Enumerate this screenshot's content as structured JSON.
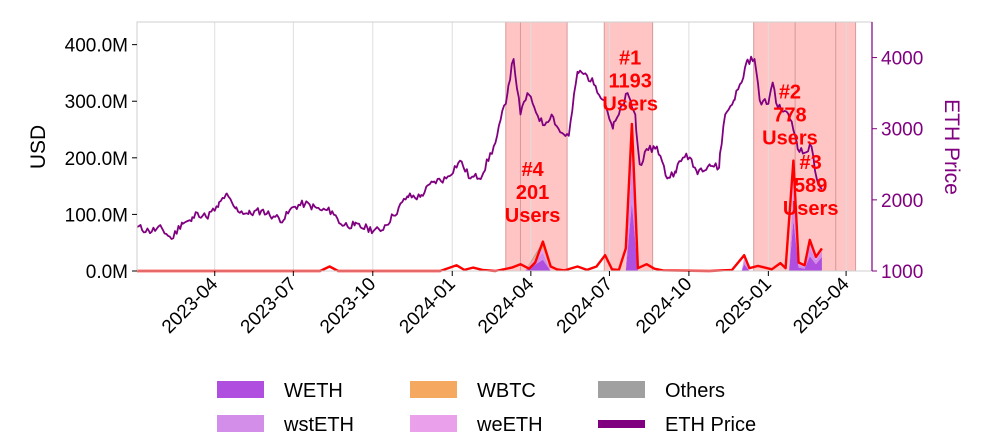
{
  "chart_data": {
    "type": "area",
    "x_axis": {
      "type": "date",
      "range": [
        "2023-01-01",
        "2025-05-01"
      ],
      "tick_labels": [
        "2023-04",
        "2023-07",
        "2023-10",
        "2024-01",
        "2024-04",
        "2024-07",
        "2024-10",
        "2025-01",
        "2025-04"
      ],
      "grid": true
    },
    "y_left": {
      "label": "USD",
      "range": [
        0,
        440000000
      ],
      "tick_values": [
        0,
        100000000,
        200000000,
        300000000,
        400000000
      ],
      "tick_labels": [
        "0.0M",
        "100.0M",
        "200.0M",
        "300.0M",
        "400.0M"
      ]
    },
    "y_right": {
      "label": "ETH Price",
      "range": [
        1000,
        4500
      ],
      "tick_values": [
        1000,
        2000,
        3000,
        4000
      ],
      "tick_labels": [
        "1000",
        "2000",
        "3000",
        "4000"
      ],
      "color": "#800080"
    },
    "legend_placement": "bottom",
    "legend": [
      {
        "label": "WETH",
        "color": "#b04ee0"
      },
      {
        "label": "WBTC",
        "color": "#f4a860"
      },
      {
        "label": "Others",
        "color": "#a0a0a0"
      },
      {
        "label": "wstETH",
        "color": "#d28ee8"
      },
      {
        "label": "weETH",
        "color": "#eaa0ea"
      },
      {
        "label": "ETH Price",
        "color": "#800080"
      }
    ],
    "shaded_periods": [
      {
        "start": "2024-03-03",
        "end": "2024-05-13"
      },
      {
        "start": "2024-06-25",
        "end": "2024-08-20"
      },
      {
        "start": "2024-12-15",
        "end": "2025-04-12"
      }
    ],
    "shaded_dividers": [
      "2024-03-20",
      "2025-02-01",
      "2025-03-20"
    ],
    "shade_color": "#ffc4c4",
    "annotations": [
      {
        "lines": [
          "#1",
          "1193",
          "Users"
        ],
        "x": "2024-07-25",
        "y": 365000000
      },
      {
        "lines": [
          "#2",
          "778",
          "Users"
        ],
        "x": "2025-01-26",
        "y": 305000000
      },
      {
        "lines": [
          "#3",
          "589",
          "Users"
        ],
        "x": "2025-02-19",
        "y": 180000000
      },
      {
        "lines": [
          "#4",
          "201",
          "Users"
        ],
        "x": "2024-04-03",
        "y": 168000000
      }
    ],
    "total_line": {
      "name": "Total",
      "color": "#ff0000",
      "points": [
        [
          "2023-01-01",
          0
        ],
        [
          "2023-08-01",
          0
        ],
        [
          "2023-08-12",
          8000000
        ],
        [
          "2023-08-22",
          0
        ],
        [
          "2023-12-18",
          0
        ],
        [
          "2024-01-06",
          10000000
        ],
        [
          "2024-01-15",
          2000000
        ],
        [
          "2024-01-25",
          6000000
        ],
        [
          "2024-02-05",
          2000000
        ],
        [
          "2024-02-20",
          0
        ],
        [
          "2024-03-10",
          6000000
        ],
        [
          "2024-03-20",
          12000000
        ],
        [
          "2024-03-30",
          4000000
        ],
        [
          "2024-04-06",
          15000000
        ],
        [
          "2024-04-15",
          52000000
        ],
        [
          "2024-04-24",
          8000000
        ],
        [
          "2024-05-01",
          3000000
        ],
        [
          "2024-05-10",
          1000000
        ],
        [
          "2024-05-25",
          8000000
        ],
        [
          "2024-06-05",
          2000000
        ],
        [
          "2024-06-16",
          8000000
        ],
        [
          "2024-06-26",
          28000000
        ],
        [
          "2024-07-04",
          3000000
        ],
        [
          "2024-07-12",
          2000000
        ],
        [
          "2024-07-20",
          40000000
        ],
        [
          "2024-07-27",
          260000000
        ],
        [
          "2024-08-03",
          5000000
        ],
        [
          "2024-08-13",
          12000000
        ],
        [
          "2024-08-22",
          4000000
        ],
        [
          "2024-09-01",
          1000000
        ],
        [
          "2024-10-25",
          0
        ],
        [
          "2024-11-20",
          2000000
        ],
        [
          "2024-12-04",
          28000000
        ],
        [
          "2024-12-10",
          5000000
        ],
        [
          "2024-12-20",
          9000000
        ],
        [
          "2025-01-05",
          3000000
        ],
        [
          "2025-01-15",
          14000000
        ],
        [
          "2025-01-21",
          5000000
        ],
        [
          "2025-01-30",
          195000000
        ],
        [
          "2025-02-05",
          15000000
        ],
        [
          "2025-02-12",
          10000000
        ],
        [
          "2025-02-18",
          55000000
        ],
        [
          "2025-02-25",
          25000000
        ],
        [
          "2025-03-04",
          40000000
        ]
      ]
    },
    "series": [
      {
        "name": "WETH",
        "color": "#b04ee0",
        "points": [
          [
            "2024-03-25",
            0
          ],
          [
            "2024-04-15",
            20000000
          ],
          [
            "2024-04-24",
            0
          ],
          [
            "2024-07-20",
            0
          ],
          [
            "2024-07-27",
            120000000
          ],
          [
            "2024-08-03",
            0
          ],
          [
            "2024-12-01",
            0
          ],
          [
            "2024-12-04",
            12000000
          ],
          [
            "2024-12-10",
            0
          ],
          [
            "2025-01-25",
            0
          ],
          [
            "2025-01-30",
            90000000
          ],
          [
            "2025-02-05",
            6000000
          ],
          [
            "2025-02-12",
            4000000
          ],
          [
            "2025-02-18",
            26000000
          ],
          [
            "2025-02-25",
            12000000
          ],
          [
            "2025-03-04",
            25000000
          ]
        ]
      },
      {
        "name": "wstETH",
        "color": "#d28ee8",
        "points": [
          [
            "2024-03-25",
            0
          ],
          [
            "2024-04-15",
            12000000
          ],
          [
            "2024-04-24",
            0
          ],
          [
            "2024-07-20",
            0
          ],
          [
            "2024-07-27",
            80000000
          ],
          [
            "2024-08-03",
            0
          ],
          [
            "2024-12-01",
            0
          ],
          [
            "2024-12-04",
            8000000
          ],
          [
            "2024-12-10",
            0
          ],
          [
            "2025-01-25",
            0
          ],
          [
            "2025-01-30",
            60000000
          ],
          [
            "2025-02-05",
            4000000
          ],
          [
            "2025-02-12",
            3000000
          ],
          [
            "2025-02-18",
            16000000
          ],
          [
            "2025-02-25",
            7000000
          ],
          [
            "2025-03-04",
            10000000
          ]
        ]
      },
      {
        "name": "weETH",
        "color": "#eaa0ea",
        "points": [
          [
            "2024-03-25",
            0
          ],
          [
            "2024-04-15",
            8000000
          ],
          [
            "2024-04-24",
            0
          ],
          [
            "2024-07-20",
            0
          ],
          [
            "2024-07-27",
            40000000
          ],
          [
            "2024-08-03",
            0
          ],
          [
            "2024-12-01",
            0
          ],
          [
            "2024-12-04",
            5000000
          ],
          [
            "2024-12-10",
            0
          ],
          [
            "2025-01-25",
            0
          ],
          [
            "2025-01-30",
            30000000
          ],
          [
            "2025-02-05",
            3000000
          ],
          [
            "2025-02-12",
            2000000
          ],
          [
            "2025-02-18",
            8000000
          ],
          [
            "2025-02-25",
            4000000
          ],
          [
            "2025-03-04",
            3000000
          ]
        ]
      },
      {
        "name": "WBTC",
        "color": "#f4a860",
        "points": [
          [
            "2024-03-25",
            0
          ],
          [
            "2024-04-15",
            7000000
          ],
          [
            "2024-04-24",
            0
          ],
          [
            "2024-07-20",
            0
          ],
          [
            "2024-07-27",
            15000000
          ],
          [
            "2024-08-03",
            0
          ],
          [
            "2025-01-25",
            0
          ],
          [
            "2025-01-30",
            10000000
          ],
          [
            "2025-02-05",
            1000000
          ],
          [
            "2025-02-18",
            3000000
          ],
          [
            "2025-02-25",
            1000000
          ],
          [
            "2025-03-04",
            1000000
          ]
        ]
      },
      {
        "name": "Others",
        "color": "#a0a0a0",
        "points": [
          [
            "2024-03-25",
            0
          ],
          [
            "2024-04-15",
            5000000
          ],
          [
            "2024-04-24",
            0
          ],
          [
            "2024-07-20",
            0
          ],
          [
            "2024-07-27",
            5000000
          ],
          [
            "2024-08-03",
            0
          ],
          [
            "2025-01-25",
            0
          ],
          [
            "2025-01-30",
            5000000
          ],
          [
            "2025-02-05",
            1000000
          ],
          [
            "2025-02-18",
            2000000
          ],
          [
            "2025-02-25",
            1000000
          ],
          [
            "2025-03-04",
            1000000
          ]
        ]
      }
    ],
    "eth_price": {
      "name": "ETH Price",
      "color": "#800080",
      "axis": "right",
      "points": [
        [
          "2023-01-01",
          1620
        ],
        [
          "2023-01-15",
          1560
        ],
        [
          "2023-01-30",
          1600
        ],
        [
          "2023-02-10",
          1450
        ],
        [
          "2023-02-22",
          1680
        ],
        [
          "2023-03-05",
          1700
        ],
        [
          "2023-03-12",
          1820
        ],
        [
          "2023-03-22",
          1760
        ],
        [
          "2023-04-05",
          1900
        ],
        [
          "2023-04-14",
          2080
        ],
        [
          "2023-04-25",
          1880
        ],
        [
          "2023-05-10",
          1800
        ],
        [
          "2023-05-25",
          1850
        ],
        [
          "2023-06-10",
          1760
        ],
        [
          "2023-06-20",
          1720
        ],
        [
          "2023-07-01",
          1900
        ],
        [
          "2023-07-15",
          1950
        ],
        [
          "2023-08-01",
          1860
        ],
        [
          "2023-08-15",
          1840
        ],
        [
          "2023-08-25",
          1660
        ],
        [
          "2023-09-10",
          1640
        ],
        [
          "2023-09-25",
          1600
        ],
        [
          "2023-10-10",
          1560
        ],
        [
          "2023-10-25",
          1780
        ],
        [
          "2023-11-10",
          2050
        ],
        [
          "2023-11-25",
          2040
        ],
        [
          "2023-12-10",
          2250
        ],
        [
          "2023-12-25",
          2300
        ],
        [
          "2024-01-10",
          2550
        ],
        [
          "2024-01-22",
          2300
        ],
        [
          "2024-02-05",
          2350
        ],
        [
          "2024-02-20",
          2800
        ],
        [
          "2024-03-05",
          3500
        ],
        [
          "2024-03-12",
          3980
        ],
        [
          "2024-03-20",
          3200
        ],
        [
          "2024-03-28",
          3500
        ],
        [
          "2024-04-05",
          3300
        ],
        [
          "2024-04-15",
          3050
        ],
        [
          "2024-04-25",
          3200
        ],
        [
          "2024-05-05",
          2950
        ],
        [
          "2024-05-15",
          2900
        ],
        [
          "2024-05-25",
          3800
        ],
        [
          "2024-06-05",
          3750
        ],
        [
          "2024-06-15",
          3600
        ],
        [
          "2024-06-25",
          3400
        ],
        [
          "2024-07-05",
          3000
        ],
        [
          "2024-07-12",
          3200
        ],
        [
          "2024-07-22",
          3500
        ],
        [
          "2024-07-31",
          3200
        ],
        [
          "2024-08-05",
          2500
        ],
        [
          "2024-08-15",
          2700
        ],
        [
          "2024-08-25",
          2750
        ],
        [
          "2024-09-06",
          2300
        ],
        [
          "2024-09-15",
          2400
        ],
        [
          "2024-09-28",
          2650
        ],
        [
          "2024-10-10",
          2400
        ],
        [
          "2024-10-25",
          2500
        ],
        [
          "2024-11-05",
          2450
        ],
        [
          "2024-11-12",
          3200
        ],
        [
          "2024-11-22",
          3400
        ],
        [
          "2024-12-01",
          3650
        ],
        [
          "2024-12-07",
          3950
        ],
        [
          "2024-12-16",
          3980
        ],
        [
          "2024-12-22",
          3400
        ],
        [
          "2025-01-01",
          3350
        ],
        [
          "2025-01-06",
          3650
        ],
        [
          "2025-01-12",
          3300
        ],
        [
          "2025-01-20",
          3250
        ],
        [
          "2025-01-28",
          3100
        ],
        [
          "2025-02-03",
          2800
        ],
        [
          "2025-02-10",
          2650
        ],
        [
          "2025-02-20",
          2750
        ],
        [
          "2025-02-26",
          2300
        ],
        [
          "2025-03-04",
          2150
        ]
      ]
    }
  }
}
